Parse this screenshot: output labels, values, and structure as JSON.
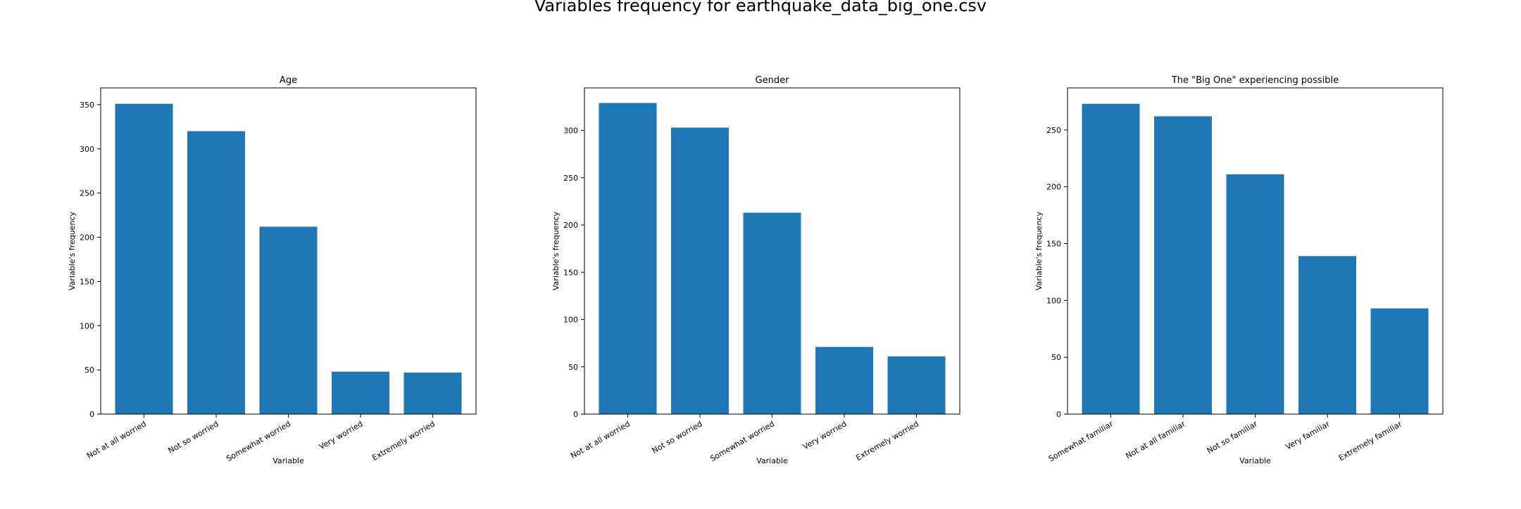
{
  "figure": {
    "title": "Variables frequency for earthquake_data_big_one.csv"
  },
  "colors": {
    "bar": "#1f77b4",
    "axes": "#000000",
    "background": "#ffffff"
  },
  "chart_data": [
    {
      "type": "bar",
      "title": "Age",
      "xlabel": "Variable",
      "ylabel": "Variable's frequency",
      "categories": [
        "Not at all worried",
        "Not so worried",
        "Somewhat worried",
        "Very worried",
        "Extremely worried"
      ],
      "values": [
        351,
        320,
        212,
        48,
        47
      ],
      "ylim": [
        0,
        369
      ],
      "yticks": [
        0,
        50,
        100,
        150,
        200,
        250,
        300,
        350
      ],
      "grid": false
    },
    {
      "type": "bar",
      "title": "Gender",
      "xlabel": "Variable",
      "ylabel": "Variable's frequency",
      "categories": [
        "Not at all worried",
        "Not so worried",
        "Somewhat worried",
        "Very worried",
        "Extremely worried"
      ],
      "values": [
        329,
        303,
        213,
        71,
        61
      ],
      "ylim": [
        0,
        345
      ],
      "yticks": [
        0,
        50,
        100,
        150,
        200,
        250,
        300
      ],
      "grid": false
    },
    {
      "type": "bar",
      "title": "The \"Big One\" experiencing possible",
      "xlabel": "Variable",
      "ylabel": "Variable's frequency",
      "categories": [
        "Somewhat familiar",
        "Not at all familiar",
        "Not so familiar",
        "Very familiar",
        "Extremely familiar"
      ],
      "values": [
        273,
        262,
        211,
        139,
        93
      ],
      "ylim": [
        0,
        287
      ],
      "yticks": [
        0,
        50,
        100,
        150,
        200,
        250
      ],
      "grid": false
    }
  ]
}
